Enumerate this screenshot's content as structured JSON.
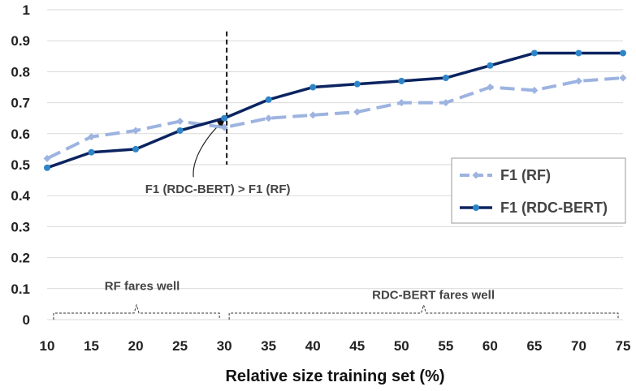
{
  "chart_data": {
    "type": "line",
    "xlabel": "Relative size training set (%)",
    "ylabel": "",
    "x": [
      10,
      15,
      20,
      25,
      30,
      35,
      40,
      45,
      50,
      55,
      60,
      65,
      70,
      75
    ],
    "xlim": [
      10,
      75
    ],
    "ylim": [
      0,
      1
    ],
    "y_ticks": [
      "0",
      "0.1",
      "0.2",
      "0.3",
      "0.4",
      "0.5",
      "0.6",
      "0.7",
      "0.8",
      "0.9",
      "1"
    ],
    "grid": true,
    "legend_position": "right",
    "series": [
      {
        "name": "F1 (RF)",
        "style": "dashed",
        "marker": "diamond",
        "color": "#9db3e0",
        "values": [
          0.52,
          0.59,
          0.61,
          0.64,
          0.62,
          0.65,
          0.66,
          0.67,
          0.7,
          0.7,
          0.75,
          0.74,
          0.77,
          0.78
        ]
      },
      {
        "name": "F1 (RDC-BERT)",
        "style": "solid",
        "marker": "circle",
        "color": "#0b2460",
        "marker_color": "#2e86c9",
        "values": [
          0.49,
          0.54,
          0.55,
          0.61,
          0.65,
          0.71,
          0.75,
          0.76,
          0.77,
          0.78,
          0.82,
          0.86,
          0.86,
          0.86
        ]
      }
    ],
    "annotations": {
      "crossover_label": "F1 (RDC-BERT) > F1 (RF)",
      "crossover_x": 30,
      "crossover_y": 0.65,
      "region_left_label": "RF fares well",
      "region_left_range": [
        10,
        30
      ],
      "region_right_label": "RDC-BERT fares well",
      "region_right_range": [
        30,
        75
      ]
    }
  }
}
